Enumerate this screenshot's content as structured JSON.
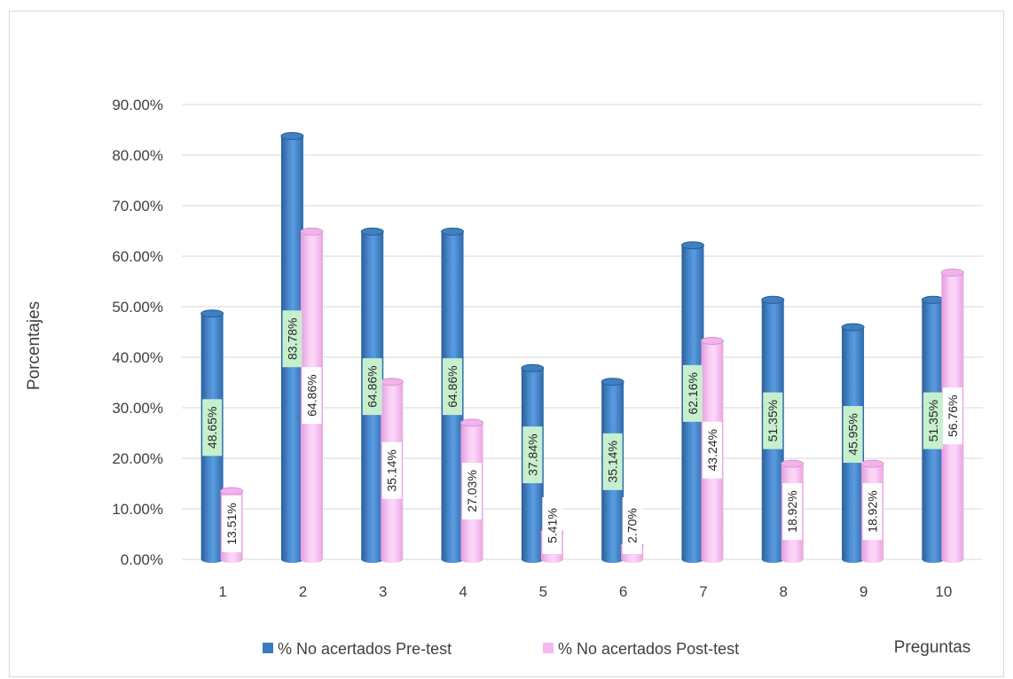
{
  "chart_data": {
    "type": "bar",
    "title": "",
    "xlabel": "Preguntas",
    "ylabel": "Porcentajes",
    "categories": [
      "1",
      "2",
      "3",
      "4",
      "5",
      "6",
      "7",
      "8",
      "9",
      "10"
    ],
    "y_ticks": [
      "0.00%",
      "10.00%",
      "20.00%",
      "30.00%",
      "40.00%",
      "50.00%",
      "60.00%",
      "70.00%",
      "80.00%",
      "90.00%"
    ],
    "ylim": [
      0,
      90
    ],
    "grid": true,
    "legend_position": "bottom",
    "series": [
      {
        "name": "% No acertados Pre-test",
        "color": "#3a7cc4",
        "label_bg": "#c6efce",
        "values": [
          48.65,
          83.78,
          64.86,
          64.86,
          37.84,
          35.14,
          62.16,
          51.35,
          45.95,
          51.35
        ],
        "labels": [
          "48.65%",
          "83.78%",
          "64.86%",
          "64.86%",
          "37.84%",
          "35.14%",
          "62.16%",
          "51.35%",
          "45.95%",
          "51.35%"
        ]
      },
      {
        "name": "% No acertados Post-test",
        "color": "#f5b8f0",
        "label_bg": "#ffffff",
        "values": [
          13.51,
          64.86,
          35.14,
          27.03,
          5.41,
          2.7,
          43.24,
          18.92,
          18.92,
          56.76
        ],
        "labels": [
          "13.51%",
          "64.86%",
          "35.14%",
          "27.03%",
          "5.41%",
          "2.70%",
          "43.24%",
          "18.92%",
          "18.92%",
          "56.76%"
        ]
      }
    ]
  }
}
